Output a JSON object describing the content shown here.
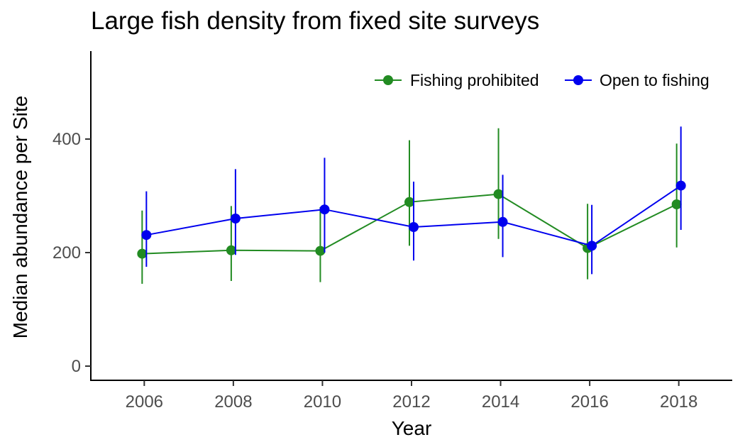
{
  "chart_data": {
    "type": "line",
    "title": "Large fish density from fixed site surveys",
    "xlabel": "Year",
    "ylabel": "Median abundance per Site",
    "x": [
      2006,
      2008,
      2010,
      2012,
      2014,
      2016,
      2018
    ],
    "x_ticks": [
      2006,
      2008,
      2010,
      2012,
      2014,
      2016,
      2018
    ],
    "y_ticks": [
      0,
      200,
      400
    ],
    "xlim": [
      2004.8,
      2019.2
    ],
    "ylim": [
      -25,
      555
    ],
    "grid": false,
    "legend_position": "top-right",
    "series": [
      {
        "name": "Fishing prohibited",
        "color": "#228B22",
        "values": [
          198,
          204,
          203,
          289,
          303,
          208,
          285
        ],
        "error_low": [
          145,
          150,
          148,
          212,
          224,
          153,
          209
        ],
        "error_high": [
          274,
          282,
          280,
          398,
          419,
          286,
          392
        ]
      },
      {
        "name": "Open to fishing",
        "color": "#0000EE",
        "values": [
          231,
          260,
          276,
          245,
          254,
          212,
          318
        ],
        "error_low": [
          175,
          196,
          200,
          186,
          192,
          162,
          240
        ],
        "error_high": [
          308,
          347,
          367,
          325,
          337,
          284,
          422
        ]
      }
    ]
  }
}
